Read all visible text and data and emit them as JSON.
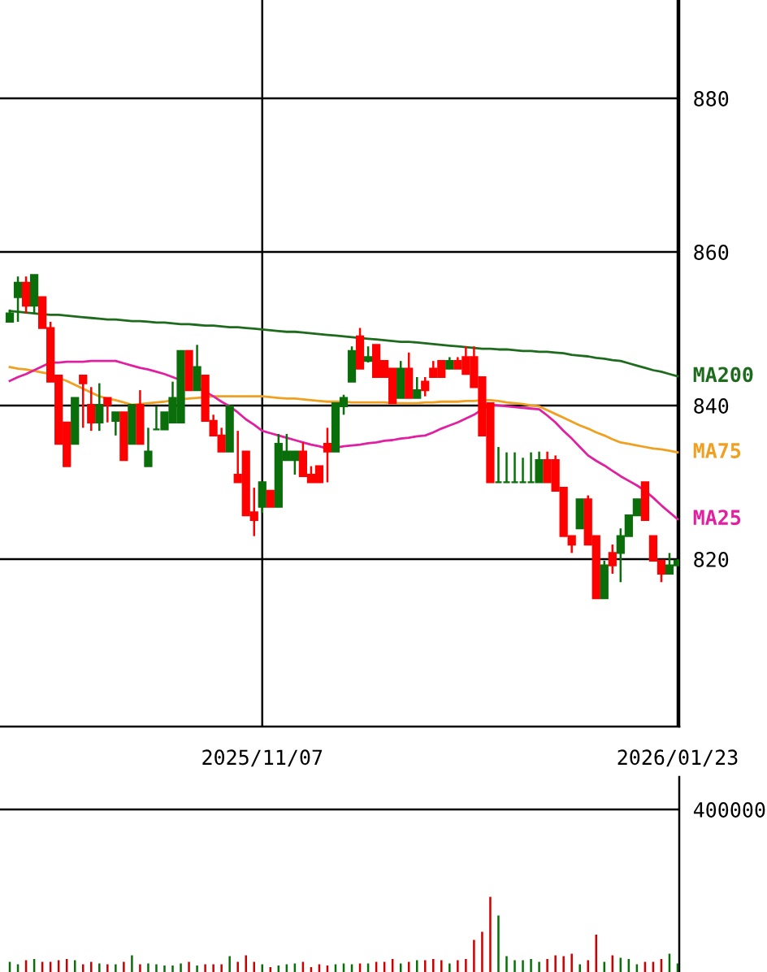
{
  "chart_data": [
    {
      "type": "candlestick",
      "categories": [
        null,
        null,
        null,
        null,
        null,
        null,
        null,
        null,
        null,
        null,
        null,
        null,
        null,
        null,
        null,
        null,
        null,
        null,
        null,
        null,
        null,
        null,
        null,
        null,
        null,
        null,
        null,
        null,
        null,
        null,
        null,
        "2025/11/07",
        null,
        null,
        null,
        null,
        null,
        null,
        null,
        null,
        null,
        null,
        null,
        null,
        null,
        null,
        null,
        null,
        null,
        null,
        null,
        null,
        null,
        null,
        null,
        null,
        null,
        null,
        null,
        null,
        null,
        null,
        null,
        null,
        null,
        null,
        null,
        null,
        null,
        null,
        null,
        null,
        null,
        null,
        null,
        null,
        null,
        null,
        null,
        null,
        null,
        null,
        "2026/01/23"
      ],
      "ohlc": [
        [
          850.9,
          852.5,
          850.9,
          852.0
        ],
        [
          854.1,
          856.8,
          850.9,
          856.0
        ],
        [
          856.0,
          856.8,
          852.0,
          853.0
        ],
        [
          853.0,
          857.0,
          852.0,
          857.0
        ],
        [
          854.1,
          854.1,
          850.1,
          850.1
        ],
        [
          850.1,
          850.9,
          843.1,
          843.1
        ],
        [
          843.9,
          843.9,
          835.0,
          835.0
        ],
        [
          837.8,
          837.8,
          832.1,
          832.1
        ],
        [
          835.0,
          841.0,
          835.0,
          841.0
        ],
        [
          843.9,
          843.9,
          837.1,
          842.9
        ],
        [
          840.1,
          842.4,
          836.7,
          837.8
        ],
        [
          837.8,
          842.9,
          836.7,
          840.1
        ],
        [
          841.0,
          841.0,
          837.8,
          840.1
        ],
        [
          838.0,
          839.1,
          836.1,
          839.1
        ],
        [
          839.1,
          839.1,
          832.9,
          832.9
        ],
        [
          835.0,
          840.1,
          835.0,
          840.1
        ],
        [
          840.1,
          842.0,
          835.0,
          835.0
        ],
        [
          832.1,
          837.1,
          832.1,
          834.0
        ],
        [
          836.9,
          839.9,
          836.9,
          836.9
        ],
        [
          836.9,
          839.1,
          836.9,
          839.1
        ],
        [
          837.8,
          843.1,
          837.8,
          841.0
        ],
        [
          837.8,
          847.1,
          837.8,
          847.1
        ],
        [
          847.1,
          847.1,
          842.0,
          842.0
        ],
        [
          842.0,
          847.9,
          842.0,
          845.0
        ],
        [
          843.9,
          843.9,
          838.0,
          838.0
        ],
        [
          838.0,
          838.8,
          836.1,
          836.1
        ],
        [
          836.1,
          837.1,
          834.0,
          834.0
        ],
        [
          834.0,
          839.9,
          834.0,
          839.9
        ],
        [
          831.0,
          836.7,
          830.0,
          830.0
        ],
        [
          834.0,
          834.0,
          825.7,
          825.7
        ],
        [
          826.1,
          829.3,
          823.0,
          825.1
        ],
        [
          826.8,
          830.0,
          826.0,
          830.0
        ],
        [
          828.9,
          828.9,
          826.8,
          826.8
        ],
        [
          826.8,
          836.3,
          826.8,
          835.0
        ],
        [
          832.9,
          836.3,
          832.9,
          834.0
        ],
        [
          832.9,
          834.0,
          831.0,
          834.0
        ],
        [
          834.0,
          835.2,
          830.8,
          830.8
        ],
        [
          831.0,
          832.1,
          830.0,
          830.0
        ],
        [
          832.1,
          832.1,
          830.0,
          830.0
        ],
        [
          835.0,
          837.1,
          830.0,
          834.0
        ],
        [
          834.0,
          840.3,
          834.0,
          840.3
        ],
        [
          839.9,
          841.4,
          838.8,
          841.0
        ],
        [
          843.1,
          847.7,
          843.1,
          847.1
        ],
        [
          849.0,
          850.1,
          844.8,
          844.8
        ],
        [
          845.8,
          847.7,
          845.6,
          846.3
        ],
        [
          847.9,
          847.9,
          843.7,
          843.7
        ],
        [
          845.8,
          845.8,
          843.7,
          843.7
        ],
        [
          844.8,
          844.8,
          840.3,
          840.3
        ],
        [
          841.0,
          845.8,
          841.0,
          844.8
        ],
        [
          844.8,
          846.9,
          841.0,
          841.0
        ],
        [
          841.0,
          843.7,
          841.0,
          842.0
        ],
        [
          843.1,
          843.7,
          841.2,
          842.0
        ],
        [
          844.8,
          845.8,
          843.7,
          843.7
        ],
        [
          845.8,
          845.8,
          843.7,
          843.7
        ],
        [
          844.8,
          846.3,
          844.8,
          845.8
        ],
        [
          845.8,
          846.3,
          844.8,
          844.8
        ],
        [
          846.3,
          847.7,
          844.1,
          844.1
        ],
        [
          846.3,
          847.7,
          842.4,
          842.4
        ],
        [
          843.7,
          843.7,
          836.1,
          836.1
        ],
        [
          840.3,
          840.3,
          830.0,
          830.0
        ],
        [
          830.0,
          834.6,
          830.0,
          830.0
        ],
        [
          830.0,
          833.9,
          830.0,
          830.0
        ],
        [
          830.0,
          833.9,
          830.0,
          830.0
        ],
        [
          830.0,
          833.2,
          830.0,
          830.0
        ],
        [
          830.0,
          833.9,
          830.0,
          830.0
        ],
        [
          830.0,
          834.0,
          830.0,
          832.9
        ],
        [
          832.9,
          834.0,
          830.0,
          830.0
        ],
        [
          832.9,
          833.5,
          828.9,
          828.9
        ],
        [
          829.3,
          829.3,
          823.0,
          823.0
        ],
        [
          823.0,
          823.0,
          820.8,
          821.9
        ],
        [
          824.0,
          827.8,
          824.0,
          827.8
        ],
        [
          827.8,
          828.3,
          821.9,
          821.9
        ],
        [
          823.0,
          823.0,
          814.9,
          814.9
        ],
        [
          814.9,
          819.8,
          814.9,
          819.2
        ],
        [
          820.8,
          821.9,
          818.1,
          819.2
        ],
        [
          820.8,
          824.0,
          817.0,
          823.0
        ],
        [
          823.0,
          825.7,
          823.0,
          825.7
        ],
        [
          825.7,
          827.8,
          825.7,
          827.8
        ],
        [
          830.0,
          830.0,
          825.1,
          825.1
        ],
        [
          823.0,
          823.0,
          819.8,
          819.8
        ],
        [
          819.8,
          819.8,
          817.0,
          818.1
        ],
        [
          818.1,
          820.8,
          818.1,
          819.2
        ],
        [
          819.2,
          820.0,
          819.2,
          819.8
        ]
      ],
      "colors": [
        "#0a6e0a",
        "#0a6e0a",
        "#ff0000",
        "#0a6e0a",
        "#ff0000",
        "#ff0000",
        "#ff0000",
        "#ff0000",
        "#0a6e0a",
        "#ff0000",
        "#ff0000",
        "#0a6e0a",
        "#ff0000",
        "#0a6e0a",
        "#ff0000",
        "#0a6e0a",
        "#ff0000",
        "#0a6e0a",
        "#0a6e0a",
        "#0a6e0a",
        "#0a6e0a",
        "#0a6e0a",
        "#ff0000",
        "#0a6e0a",
        "#ff0000",
        "#ff0000",
        "#ff0000",
        "#0a6e0a",
        "#ff0000",
        "#ff0000",
        "#ff0000",
        "#0a6e0a",
        "#ff0000",
        "#0a6e0a",
        "#0a6e0a",
        "#0a6e0a",
        "#ff0000",
        "#ff0000",
        "#ff0000",
        "#ff0000",
        "#0a6e0a",
        "#0a6e0a",
        "#0a6e0a",
        "#ff0000",
        "#0a6e0a",
        "#ff0000",
        "#ff0000",
        "#ff0000",
        "#0a6e0a",
        "#ff0000",
        "#0a6e0a",
        "#ff0000",
        "#ff0000",
        "#ff0000",
        "#0a6e0a",
        "#ff0000",
        "#ff0000",
        "#ff0000",
        "#ff0000",
        "#ff0000",
        "#0a6e0a",
        "#0a6e0a",
        "#0a6e0a",
        "#0a6e0a",
        "#0a6e0a",
        "#0a6e0a",
        "#ff0000",
        "#ff0000",
        "#ff0000",
        "#ff0000",
        "#0a6e0a",
        "#ff0000",
        "#ff0000",
        "#0a6e0a",
        "#ff0000",
        "#0a6e0a",
        "#0a6e0a",
        "#0a6e0a",
        "#ff0000",
        "#ff0000",
        "#ff0000",
        "#0a6e0a",
        "#0a6e0a"
      ],
      "series": [
        {
          "name": "MA200",
          "type": "line",
          "color": "#1e6b1e",
          "values": [
            852.3,
            852.2,
            852.1,
            852.0,
            851.9,
            851.8,
            851.8,
            851.7,
            851.6,
            851.5,
            851.4,
            851.3,
            851.2,
            851.2,
            851.1,
            851.0,
            851.0,
            850.9,
            850.8,
            850.8,
            850.7,
            850.6,
            850.6,
            850.5,
            850.4,
            850.4,
            850.3,
            850.2,
            850.2,
            850.1,
            850.0,
            849.9,
            849.8,
            849.7,
            849.6,
            849.6,
            849.5,
            849.4,
            849.3,
            849.2,
            849.1,
            849.0,
            848.9,
            848.8,
            848.7,
            848.6,
            848.5,
            848.4,
            848.3,
            848.3,
            848.2,
            848.1,
            848.0,
            847.9,
            847.8,
            847.7,
            847.6,
            847.5,
            847.4,
            847.4,
            847.3,
            847.3,
            847.2,
            847.1,
            847.1,
            847.0,
            847.0,
            846.9,
            846.8,
            846.6,
            846.5,
            846.4,
            846.2,
            846.1,
            845.9,
            845.8,
            845.5,
            845.2,
            844.9,
            844.6,
            844.4,
            844.1,
            843.8
          ]
        },
        {
          "name": "MA75",
          "type": "line",
          "color": "#f0a020",
          "values": [
            845.0,
            844.8,
            844.7,
            844.5,
            844.3,
            844.1,
            843.6,
            843.2,
            842.7,
            842.2,
            841.7,
            841.2,
            840.9,
            840.7,
            840.4,
            840.1,
            840.2,
            840.3,
            840.4,
            840.5,
            840.7,
            840.8,
            840.9,
            841.0,
            841.1,
            841.2,
            841.2,
            841.2,
            841.2,
            841.2,
            841.2,
            841.2,
            841.1,
            841.0,
            840.9,
            840.9,
            840.8,
            840.7,
            840.6,
            840.5,
            840.5,
            840.5,
            840.4,
            840.4,
            840.4,
            840.4,
            840.4,
            840.3,
            840.3,
            840.3,
            840.3,
            840.4,
            840.4,
            840.5,
            840.5,
            840.5,
            840.6,
            840.6,
            840.7,
            840.7,
            840.6,
            840.4,
            840.3,
            840.2,
            840.0,
            839.9,
            839.4,
            838.9,
            838.4,
            837.9,
            837.4,
            837.0,
            836.5,
            836.1,
            835.6,
            835.2,
            835.0,
            834.8,
            834.6,
            834.4,
            834.3,
            834.1,
            833.9
          ]
        },
        {
          "name": "MA25",
          "type": "line",
          "color": "#e020a0",
          "values": [
            843.2,
            843.7,
            844.1,
            844.6,
            845.1,
            845.6,
            845.6,
            845.7,
            845.7,
            845.7,
            845.8,
            845.8,
            845.8,
            845.8,
            845.5,
            845.2,
            844.9,
            844.7,
            844.4,
            844.1,
            843.7,
            843.3,
            null,
            842.4,
            841.8,
            841.2,
            840.5,
            839.9,
            839.1,
            838.2,
            837.5,
            836.7,
            836.4,
            836.1,
            835.8,
            835.5,
            835.2,
            834.9,
            834.7,
            834.4,
            834.5,
            834.7,
            834.8,
            834.9,
            835.1,
            835.2,
            835.4,
            835.5,
            835.7,
            835.8,
            836.0,
            836.1,
            836.5,
            837.0,
            837.4,
            837.8,
            838.3,
            838.8,
            839.5,
            840.1,
            840.0,
            839.9,
            839.8,
            839.7,
            839.6,
            839.5,
            838.7,
            837.8,
            836.7,
            835.7,
            834.6,
            833.5,
            832.8,
            832.2,
            831.5,
            830.8,
            830.2,
            829.6,
            828.9,
            828.0,
            827.0,
            826.1,
            825.2
          ]
        }
      ],
      "ylim": [
        798.2,
        892.8
      ],
      "yticks": [
        820,
        840,
        860,
        880
      ],
      "grid": true
    },
    {
      "type": "bar",
      "categories": [
        null,
        null,
        null,
        null,
        null,
        null,
        null,
        null,
        null,
        null,
        null,
        null,
        null,
        null,
        null,
        null,
        null,
        null,
        null,
        null,
        null,
        null,
        null,
        null,
        null,
        null,
        null,
        null,
        null,
        null,
        null,
        null,
        null,
        null,
        null,
        null,
        null,
        null,
        null,
        null,
        null,
        null,
        null,
        null,
        null,
        null,
        null,
        null,
        null,
        null,
        null,
        null,
        null,
        null,
        null,
        null,
        null,
        null,
        null,
        null,
        null,
        null,
        null,
        null,
        null,
        null,
        null,
        null,
        null,
        null,
        null,
        null,
        null,
        null,
        null,
        null,
        null,
        null,
        null,
        null,
        null,
        null,
        null
      ],
      "values": [
        25000,
        19000,
        29000,
        32000,
        25000,
        25000,
        29000,
        32000,
        29000,
        19000,
        25000,
        21000,
        19000,
        19000,
        25000,
        41000,
        19000,
        21000,
        19000,
        16000,
        16000,
        21000,
        25000,
        16000,
        19000,
        19000,
        19000,
        39000,
        25000,
        41000,
        25000,
        19000,
        12000,
        16000,
        19000,
        21000,
        25000,
        12000,
        19000,
        16000,
        19000,
        21000,
        19000,
        21000,
        21000,
        25000,
        25000,
        32000,
        21000,
        25000,
        29000,
        29000,
        32000,
        29000,
        21000,
        29000,
        32000,
        79000,
        99000,
        185000,
        139000,
        39000,
        29000,
        29000,
        32000,
        25000,
        32000,
        41000,
        39000,
        45000,
        19000,
        29000,
        92000,
        25000,
        41000,
        35000,
        32000,
        19000,
        25000,
        25000,
        32000,
        45000,
        21000
      ],
      "colors": [
        "#0a6e0a",
        "#0a6e0a",
        "#cc0000",
        "#0a6e0a",
        "#cc0000",
        "#cc0000",
        "#cc0000",
        "#cc0000",
        "#0a6e0a",
        "#cc0000",
        "#cc0000",
        "#0a6e0a",
        "#cc0000",
        "#0a6e0a",
        "#cc0000",
        "#0a6e0a",
        "#cc0000",
        "#0a6e0a",
        "#0a6e0a",
        "#0a6e0a",
        "#0a6e0a",
        "#0a6e0a",
        "#cc0000",
        "#0a6e0a",
        "#cc0000",
        "#cc0000",
        "#cc0000",
        "#0a6e0a",
        "#cc0000",
        "#cc0000",
        "#cc0000",
        "#0a6e0a",
        "#cc0000",
        "#0a6e0a",
        "#0a6e0a",
        "#0a6e0a",
        "#cc0000",
        "#cc0000",
        "#cc0000",
        "#cc0000",
        "#0a6e0a",
        "#0a6e0a",
        "#0a6e0a",
        "#cc0000",
        "#0a6e0a",
        "#cc0000",
        "#cc0000",
        "#cc0000",
        "#0a6e0a",
        "#cc0000",
        "#0a6e0a",
        "#cc0000",
        "#cc0000",
        "#cc0000",
        "#0a6e0a",
        "#cc0000",
        "#cc0000",
        "#cc0000",
        "#cc0000",
        "#cc0000",
        "#0a6e0a",
        "#0a6e0a",
        "#0a6e0a",
        "#0a6e0a",
        "#0a6e0a",
        "#0a6e0a",
        "#cc0000",
        "#cc0000",
        "#cc0000",
        "#cc0000",
        "#0a6e0a",
        "#cc0000",
        "#cc0000",
        "#0a6e0a",
        "#cc0000",
        "#0a6e0a",
        "#0a6e0a",
        "#0a6e0a",
        "#cc0000",
        "#cc0000",
        "#cc0000",
        "#0a6e0a",
        "#0a6e0a"
      ],
      "ylim": [
        0,
        480000
      ],
      "yticks": [
        400000
      ],
      "grid": "y",
      "tick_labels": "y"
    }
  ]
}
